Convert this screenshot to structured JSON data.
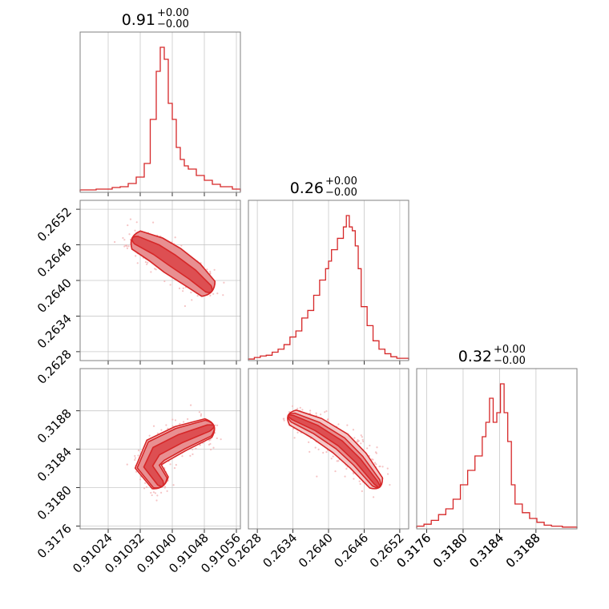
{
  "colors": {
    "accent": "#d62728",
    "fill_light": "#f4c7c8",
    "fill_mid": "#e88f91",
    "fill_dark": "#dd4f52",
    "scatter": "#f3b5b7"
  },
  "chart_data": [
    {
      "id": "hist_p0",
      "type": "histogram",
      "title": "0.91",
      "title_upper": "+0.00",
      "title_lower": "−0.00",
      "xlim": [
        0.91017,
        0.91057
      ],
      "x_ticks": [
        0.91024,
        0.91032,
        0.9104,
        0.91048,
        0.91056
      ],
      "x_tick_labels": [
        "",
        "",
        "",
        "",
        ""
      ],
      "grid": true,
      "bins_x": [
        0.91017,
        0.91019,
        0.91021,
        0.91023,
        0.91025,
        0.91027,
        0.91029,
        0.91031,
        0.91033,
        0.910345,
        0.91036,
        0.91037,
        0.91038,
        0.91039,
        0.9104,
        0.91041,
        0.91042,
        0.91043,
        0.91044,
        0.91046,
        0.91048,
        0.9105,
        0.91052,
        0.91055,
        0.91057
      ],
      "counts": [
        2,
        2,
        3,
        3,
        5,
        6,
        10,
        18,
        35,
        90,
        150,
        180,
        165,
        110,
        90,
        55,
        40,
        32,
        28,
        20,
        14,
        9,
        6,
        3
      ]
    },
    {
      "id": "hist_p1",
      "type": "histogram",
      "title": "0.26",
      "title_upper": "+0.00",
      "title_lower": "−0.00",
      "xlim": [
        0.26265,
        0.26535
      ],
      "x_ticks": [
        0.2628,
        0.2634,
        0.264,
        0.2646,
        0.2652
      ],
      "x_tick_labels": [
        "",
        "",
        "",
        "",
        ""
      ],
      "grid": true,
      "bins_x": [
        0.26265,
        0.26275,
        0.26285,
        0.26295,
        0.26305,
        0.26315,
        0.26325,
        0.26335,
        0.26345,
        0.26355,
        0.26365,
        0.26375,
        0.26385,
        0.26395,
        0.264,
        0.26405,
        0.26415,
        0.26425,
        0.2643,
        0.26435,
        0.2644,
        0.26445,
        0.2645,
        0.26455,
        0.26465,
        0.26475,
        0.26485,
        0.26495,
        0.26505,
        0.26515,
        0.26535
      ],
      "counts": [
        1,
        3,
        5,
        6,
        10,
        14,
        20,
        30,
        38,
        55,
        65,
        85,
        105,
        120,
        130,
        145,
        160,
        175,
        190,
        175,
        170,
        150,
        120,
        70,
        45,
        25,
        14,
        8,
        4,
        2
      ]
    },
    {
      "id": "hist_p2",
      "type": "histogram",
      "title": "0.32",
      "title_upper": "+0.00",
      "title_lower": "−0.00",
      "xlim": [
        0.31749,
        0.31925
      ],
      "x_ticks": [
        0.3176,
        0.318,
        0.3184,
        0.3188
      ],
      "x_tick_labels": [
        "0.3176",
        "0.3180",
        "0.3184",
        "0.3188"
      ],
      "grid": true,
      "bins_x": [
        0.31749,
        0.31757,
        0.31765,
        0.31773,
        0.31781,
        0.31789,
        0.31797,
        0.31805,
        0.31813,
        0.31821,
        0.31825,
        0.31829,
        0.31833,
        0.31837,
        0.31841,
        0.31845,
        0.31849,
        0.31853,
        0.31857,
        0.31865,
        0.31873,
        0.31881,
        0.31889,
        0.31897,
        0.31909,
        0.31925
      ],
      "counts": [
        2,
        4,
        8,
        14,
        20,
        30,
        45,
        60,
        75,
        95,
        110,
        135,
        110,
        120,
        150,
        120,
        90,
        45,
        25,
        16,
        10,
        6,
        3,
        2,
        1
      ]
    },
    {
      "id": "contour_p1_vs_p0",
      "type": "scatter",
      "xlim": [
        0.91017,
        0.91057
      ],
      "ylim": [
        0.26265,
        0.26535
      ],
      "x_ticks": [
        0.91024,
        0.91032,
        0.9104,
        0.91048,
        0.91056
      ],
      "x_tick_labels": [
        "",
        "",
        "",
        "",
        ""
      ],
      "y_ticks": [
        0.2628,
        0.2634,
        0.264,
        0.2646,
        0.2652
      ],
      "y_tick_labels": [
        "0.2628",
        "0.2634",
        "0.2640",
        "0.2646",
        "0.2652"
      ],
      "grid": true,
      "ridge": [
        [
          0.91031,
          0.26468
        ],
        [
          0.91036,
          0.26452
        ],
        [
          0.9104,
          0.26434
        ],
        [
          0.91045,
          0.2641
        ],
        [
          0.91049,
          0.26386
        ]
      ],
      "levels": [
        {
          "halfwidth": 0.00018,
          "fill": "fill_light"
        },
        {
          "halfwidth": 0.00012,
          "fill": "fill_mid"
        },
        {
          "halfwidth": 6e-05,
          "fill": "fill_dark"
        }
      ]
    },
    {
      "id": "contour_p2_vs_p0",
      "type": "scatter",
      "xlim": [
        0.91017,
        0.91057
      ],
      "ylim": [
        0.31757,
        0.31924
      ],
      "x_ticks": [
        0.91024,
        0.91032,
        0.9104,
        0.91048,
        0.91056
      ],
      "x_tick_labels": [
        "0.91024",
        "0.91032",
        "0.91040",
        "0.91048",
        "0.91056"
      ],
      "y_ticks": [
        0.3176,
        0.318,
        0.3184,
        0.3188
      ],
      "y_tick_labels": [
        "0.3176",
        "0.3180",
        "0.3184",
        "0.3188"
      ],
      "grid": true,
      "ridge": [
        [
          0.91037,
          0.31805
        ],
        [
          0.91034,
          0.31822
        ],
        [
          0.91036,
          0.31838
        ],
        [
          0.91042,
          0.31851
        ],
        [
          0.91049,
          0.31862
        ]
      ],
      "levels": [
        {
          "halfwidth": 9e-05,
          "fill": "fill_light"
        },
        {
          "halfwidth": 6e-05,
          "fill": "fill_mid"
        },
        {
          "halfwidth": 3e-05,
          "fill": "fill_dark"
        }
      ]
    },
    {
      "id": "contour_p2_vs_p1",
      "type": "scatter",
      "xlim": [
        0.26265,
        0.26535
      ],
      "ylim": [
        0.31757,
        0.31924
      ],
      "x_ticks": [
        0.2628,
        0.2634,
        0.264,
        0.2646,
        0.2652
      ],
      "x_tick_labels": [
        "0.2628",
        "0.2634",
        "0.2640",
        "0.2646",
        "0.2652"
      ],
      "y_ticks": [
        0.3176,
        0.318,
        0.3184,
        0.3188
      ],
      "y_tick_labels": [
        "",
        "",
        "",
        ""
      ],
      "grid": true,
      "ridge": [
        [
          0.2634,
          0.31873
        ],
        [
          0.2638,
          0.31862
        ],
        [
          0.2642,
          0.31846
        ],
        [
          0.2645,
          0.31828
        ],
        [
          0.2648,
          0.31805
        ]
      ],
      "levels": [
        {
          "halfwidth": 7e-05,
          "fill": "fill_light"
        },
        {
          "halfwidth": 4.5e-05,
          "fill": "fill_mid"
        },
        {
          "halfwidth": 2.2e-05,
          "fill": "fill_dark"
        }
      ]
    }
  ]
}
